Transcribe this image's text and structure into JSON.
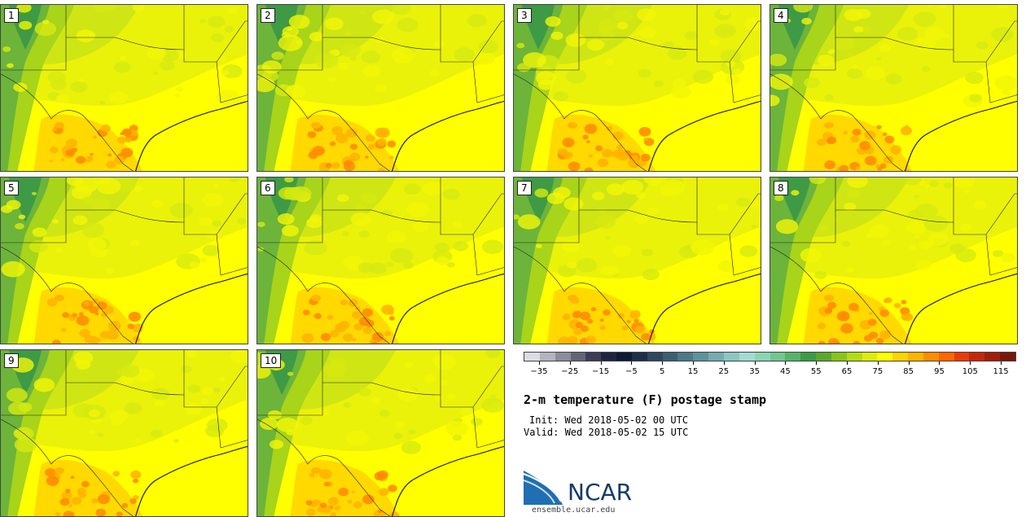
{
  "figure": {
    "title": "2-m temperature (F) postage stamp",
    "init": "Init: Wed 2018-05-02 00 UTC",
    "valid": "Valid: Wed 2018-05-02 15 UTC"
  },
  "members": [
    "1",
    "2",
    "3",
    "4",
    "5",
    "6",
    "7",
    "8",
    "9",
    "10"
  ],
  "colorbar": {
    "tick_labels": [
      "−35",
      "−25",
      "−15",
      "−5",
      "5",
      "15",
      "25",
      "35",
      "45",
      "55",
      "65",
      "75",
      "85",
      "95",
      "105",
      "115"
    ],
    "tick_values": [
      -35,
      -25,
      -15,
      -5,
      5,
      15,
      25,
      35,
      45,
      55,
      65,
      75,
      85,
      95,
      105,
      115
    ],
    "range": [
      -40,
      120
    ],
    "colors": [
      "#dcdce4",
      "#b4b4c0",
      "#8c8c9c",
      "#646478",
      "#3c3c56",
      "#1e2440",
      "#0e1a34",
      "#1c2e48",
      "#2c4860",
      "#3c5e74",
      "#4c7888",
      "#5e929c",
      "#74acaf",
      "#8cc6c2",
      "#a0dcd2",
      "#8ad6b4",
      "#70c890",
      "#56b46a",
      "#3e9a44",
      "#5aa82c",
      "#88c41c",
      "#b4dc14",
      "#dcec0c",
      "#ffff00",
      "#ffd200",
      "#ffb400",
      "#ff8c00",
      "#ff6600",
      "#e83c08",
      "#c42808",
      "#a01e0c",
      "#78180c"
    ]
  },
  "logo": {
    "name": "NCAR",
    "url": "ensemble.ucar.edu"
  }
}
